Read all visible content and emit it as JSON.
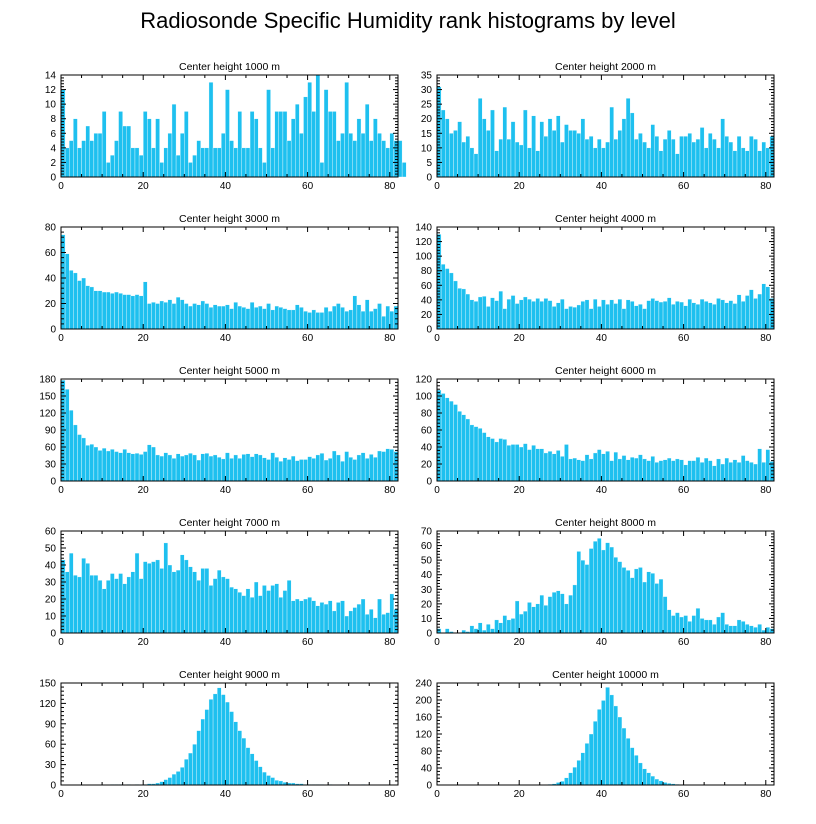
{
  "figure": {
    "title": "Radiosonde Specific Humidity rank histograms by level",
    "bar_color": "#1ec0ef",
    "bar_edge_color": "#ffffff"
  },
  "chart_data": [
    {
      "type": "bar",
      "title": "Center height 1000 m",
      "xlim": [
        0,
        82
      ],
      "ylim": [
        0,
        14
      ],
      "xticks": [
        0,
        20,
        40,
        60,
        80
      ],
      "yticks": [
        0,
        2,
        4,
        6,
        8,
        10,
        12,
        14
      ],
      "values": [
        12,
        4,
        5,
        8,
        4,
        5,
        7,
        5,
        6,
        6,
        9,
        2,
        3,
        5,
        9,
        7,
        7,
        4,
        4,
        3,
        9,
        8,
        4,
        8,
        2,
        4,
        6,
        10,
        3,
        6,
        9,
        2,
        3,
        5,
        4,
        4,
        13,
        4,
        4,
        6,
        12,
        5,
        4,
        9,
        4,
        4,
        9,
        8,
        4,
        2,
        12,
        4,
        9,
        9,
        9,
        5,
        8,
        10,
        6,
        11,
        13,
        9,
        14,
        2,
        12,
        9,
        9,
        5,
        6,
        13,
        6,
        5,
        8,
        6,
        10,
        5,
        8,
        6,
        5,
        4,
        6,
        5,
        5,
        2
      ]
    },
    {
      "type": "bar",
      "title": "Center height 2000 m",
      "xlim": [
        0,
        82
      ],
      "ylim": [
        0,
        35
      ],
      "xticks": [
        0,
        20,
        40,
        60,
        80
      ],
      "yticks": [
        0,
        5,
        10,
        15,
        20,
        25,
        30,
        35
      ],
      "values": [
        31,
        23,
        20,
        15,
        16,
        19,
        12,
        14,
        10,
        8,
        27,
        20,
        16,
        23,
        9,
        13,
        24,
        13,
        19,
        12,
        11,
        23,
        10,
        21,
        9,
        19,
        14,
        20,
        16,
        21,
        12,
        18,
        16,
        16,
        15,
        20,
        13,
        14,
        10,
        13,
        10,
        12,
        24,
        13,
        16,
        20,
        27,
        22,
        13,
        15,
        12,
        10,
        18,
        14,
        9,
        13,
        16,
        13,
        8,
        14,
        14,
        15,
        12,
        13,
        17,
        10,
        15,
        13,
        10,
        20,
        14,
        12,
        9,
        14,
        10,
        9,
        14,
        13,
        9,
        12,
        10,
        14
      ]
    },
    {
      "type": "bar",
      "title": "Center height 3000 m",
      "xlim": [
        0,
        82
      ],
      "ylim": [
        0,
        80
      ],
      "xticks": [
        0,
        20,
        40,
        60,
        80
      ],
      "yticks": [
        0,
        20,
        40,
        60,
        80
      ],
      "values": [
        74,
        59,
        46,
        44,
        38,
        40,
        34,
        33,
        30,
        30,
        29,
        29,
        28,
        29,
        28,
        27,
        27,
        26,
        27,
        26,
        37,
        20,
        21,
        20,
        22,
        21,
        23,
        20,
        25,
        23,
        20,
        18,
        20,
        19,
        22,
        20,
        17,
        19,
        18,
        18,
        19,
        16,
        21,
        18,
        17,
        16,
        21,
        17,
        18,
        16,
        20,
        15,
        18,
        17,
        16,
        15,
        15,
        19,
        17,
        14,
        13,
        15,
        13,
        13,
        17,
        14,
        18,
        20,
        17,
        14,
        15,
        26,
        19,
        14,
        23,
        14,
        16,
        20,
        10,
        18,
        14,
        18
      ]
    },
    {
      "type": "bar",
      "title": "Center height 4000 m",
      "xlim": [
        0,
        82
      ],
      "ylim": [
        0,
        140
      ],
      "xticks": [
        0,
        20,
        40,
        60,
        80
      ],
      "yticks": [
        0,
        20,
        40,
        60,
        80,
        100,
        120,
        140
      ],
      "values": [
        130,
        89,
        83,
        77,
        66,
        56,
        55,
        48,
        40,
        38,
        44,
        45,
        31,
        43,
        39,
        52,
        28,
        41,
        46,
        35,
        40,
        44,
        41,
        38,
        42,
        38,
        42,
        39,
        31,
        36,
        41,
        28,
        31,
        30,
        33,
        38,
        40,
        28,
        41,
        31,
        40,
        34,
        40,
        35,
        41,
        28,
        40,
        38,
        32,
        34,
        28,
        39,
        42,
        39,
        37,
        38,
        43,
        34,
        38,
        37,
        32,
        41,
        36,
        34,
        41,
        38,
        36,
        34,
        42,
        40,
        36,
        39,
        35,
        47,
        38,
        46,
        54,
        42,
        48,
        62,
        58,
        42
      ]
    },
    {
      "type": "bar",
      "title": "Center height 5000 m",
      "xlim": [
        0,
        82
      ],
      "ylim": [
        0,
        180
      ],
      "xticks": [
        0,
        20,
        40,
        60,
        80
      ],
      "yticks": [
        0,
        30,
        60,
        90,
        120,
        150,
        180
      ],
      "values": [
        178,
        162,
        125,
        99,
        82,
        76,
        63,
        65,
        60,
        54,
        58,
        53,
        56,
        52,
        50,
        56,
        50,
        48,
        49,
        47,
        52,
        64,
        60,
        46,
        44,
        50,
        46,
        40,
        48,
        44,
        46,
        49,
        46,
        37,
        48,
        49,
        44,
        46,
        42,
        39,
        50,
        40,
        46,
        40,
        47,
        48,
        43,
        48,
        46,
        41,
        38,
        50,
        42,
        35,
        41,
        38,
        44,
        36,
        38,
        38,
        43,
        40,
        46,
        49,
        37,
        40,
        53,
        46,
        35,
        52,
        42,
        38,
        46,
        50,
        40,
        47,
        42,
        53,
        52,
        57,
        56,
        52
      ]
    },
    {
      "type": "bar",
      "title": "Center height 6000 m",
      "xlim": [
        0,
        82
      ],
      "ylim": [
        0,
        120
      ],
      "xticks": [
        0,
        20,
        40,
        60,
        80
      ],
      "yticks": [
        0,
        20,
        40,
        60,
        80,
        100,
        120
      ],
      "values": [
        107,
        103,
        98,
        94,
        90,
        82,
        78,
        73,
        66,
        64,
        62,
        57,
        52,
        50,
        46,
        50,
        49,
        42,
        43,
        43,
        40,
        44,
        37,
        42,
        38,
        38,
        33,
        35,
        32,
        36,
        29,
        43,
        26,
        27,
        25,
        24,
        31,
        26,
        33,
        37,
        32,
        35,
        24,
        34,
        26,
        30,
        25,
        28,
        27,
        31,
        26,
        24,
        29,
        22,
        24,
        25,
        27,
        24,
        26,
        25,
        19,
        24,
        24,
        28,
        22,
        27,
        24,
        18,
        26,
        20,
        27,
        22,
        25,
        22,
        30,
        24,
        22,
        20,
        38,
        22,
        37,
        23
      ]
    },
    {
      "type": "bar",
      "title": "Center height 7000 m",
      "xlim": [
        0,
        82
      ],
      "ylim": [
        0,
        60
      ],
      "xticks": [
        0,
        20,
        40,
        60,
        80
      ],
      "yticks": [
        0,
        10,
        20,
        30,
        40,
        50,
        60
      ],
      "values": [
        43,
        36,
        47,
        34,
        33,
        44,
        41,
        34,
        34,
        31,
        26,
        31,
        35,
        32,
        35,
        29,
        33,
        36,
        47,
        32,
        42,
        41,
        42,
        43,
        38,
        53,
        40,
        36,
        37,
        46,
        43,
        39,
        36,
        31,
        38,
        38,
        28,
        32,
        37,
        33,
        32,
        27,
        26,
        24,
        22,
        26,
        21,
        30,
        22,
        28,
        25,
        28,
        29,
        21,
        25,
        31,
        19,
        20,
        19,
        20,
        21,
        19,
        16,
        18,
        17,
        19,
        13,
        18,
        19,
        10,
        13,
        15,
        17,
        20,
        11,
        14,
        9,
        20,
        11,
        12,
        23,
        14
      ]
    },
    {
      "type": "bar",
      "title": "Center height 8000 m",
      "xlim": [
        0,
        82
      ],
      "ylim": [
        0,
        70
      ],
      "xticks": [
        0,
        20,
        40,
        60,
        80
      ],
      "yticks": [
        0,
        10,
        20,
        30,
        40,
        50,
        60,
        70
      ],
      "values": [
        3,
        0,
        3,
        1,
        0,
        0,
        2,
        1,
        5,
        3,
        7,
        2,
        6,
        3,
        9,
        7,
        12,
        9,
        10,
        22,
        13,
        15,
        21,
        18,
        20,
        26,
        19,
        25,
        28,
        29,
        27,
        20,
        26,
        33,
        56,
        50,
        47,
        58,
        63,
        65,
        57,
        62,
        59,
        52,
        49,
        45,
        43,
        38,
        44,
        45,
        35,
        42,
        41,
        34,
        37,
        25,
        16,
        12,
        14,
        11,
        12,
        8,
        12,
        17,
        10,
        9,
        9,
        6,
        11,
        14,
        6,
        5,
        5,
        9,
        8,
        6,
        5,
        4,
        6,
        2,
        4,
        3
      ]
    },
    {
      "type": "bar",
      "title": "Center height 9000 m",
      "xlim": [
        0,
        82
      ],
      "ylim": [
        0,
        150
      ],
      "xticks": [
        0,
        20,
        40,
        60,
        80
      ],
      "yticks": [
        0,
        30,
        60,
        90,
        120,
        150
      ],
      "values": [
        0,
        0,
        0,
        0,
        0,
        0,
        0,
        0,
        0,
        0,
        0,
        0,
        1,
        1,
        1,
        0,
        1,
        0,
        1,
        0,
        1,
        2,
        2,
        3,
        5,
        8,
        11,
        16,
        20,
        26,
        38,
        47,
        60,
        80,
        97,
        111,
        126,
        134,
        143,
        133,
        122,
        108,
        93,
        80,
        69,
        55,
        46,
        36,
        27,
        19,
        14,
        11,
        7,
        6,
        4,
        3,
        3,
        2,
        2,
        1,
        1,
        1,
        1,
        1,
        0,
        1,
        0,
        0,
        1,
        0,
        0,
        0,
        0,
        1,
        0,
        0,
        0,
        0,
        0,
        0,
        0,
        0
      ]
    },
    {
      "type": "bar",
      "title": "Center height 10000 m",
      "xlim": [
        0,
        82
      ],
      "ylim": [
        0,
        240
      ],
      "xticks": [
        0,
        20,
        40,
        60,
        80
      ],
      "yticks": [
        0,
        40,
        80,
        120,
        160,
        200,
        240
      ],
      "values": [
        0,
        0,
        0,
        0,
        0,
        0,
        0,
        0,
        0,
        0,
        0,
        0,
        0,
        0,
        0,
        0,
        0,
        0,
        0,
        0,
        0,
        0,
        0,
        0,
        0,
        0,
        1,
        2,
        3,
        6,
        9,
        17,
        29,
        42,
        58,
        76,
        98,
        120,
        150,
        178,
        199,
        230,
        212,
        186,
        160,
        134,
        110,
        88,
        70,
        52,
        38,
        29,
        21,
        14,
        10,
        6,
        4,
        3,
        2,
        1,
        1,
        0,
        1,
        0,
        0,
        0,
        0,
        0,
        0,
        0,
        1,
        0,
        0,
        0,
        0,
        1,
        0,
        0,
        0,
        0,
        0,
        0
      ]
    }
  ]
}
